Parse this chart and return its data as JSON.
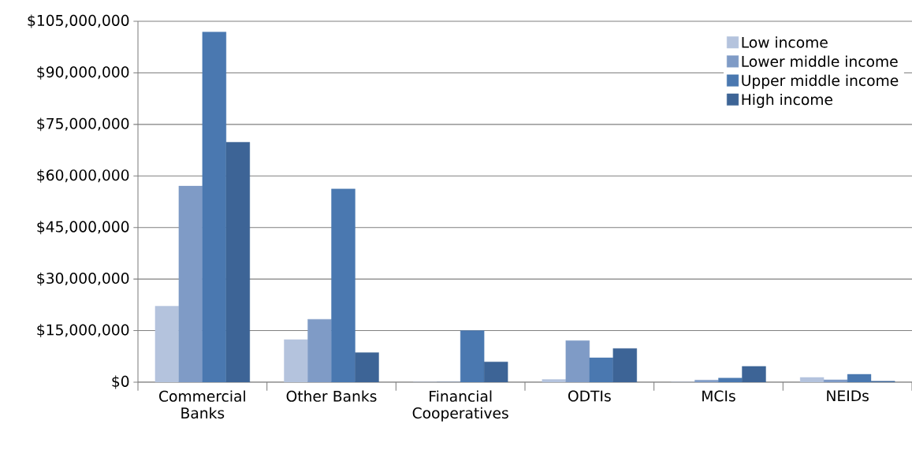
{
  "chart_data": {
    "type": "bar",
    "categories": [
      "Commercial Banks",
      "Other Banks",
      "Financial Cooperatives",
      "ODTIs",
      "MCIs",
      "NEIDs"
    ],
    "series": [
      {
        "name": "Low income",
        "color": "#b4c3dd",
        "values": [
          22100000,
          12400000,
          0,
          800000,
          0,
          1400000
        ]
      },
      {
        "name": "Lower middle income",
        "color": "#7f9bc6",
        "values": [
          57100000,
          18300000,
          0,
          12100000,
          600000,
          700000
        ]
      },
      {
        "name": "Upper middle income",
        "color": "#4a78b0",
        "values": [
          101900000,
          56200000,
          15000000,
          7100000,
          1200000,
          2300000
        ]
      },
      {
        "name": "High income",
        "color": "#3d6496",
        "values": [
          69800000,
          8600000,
          5900000,
          9800000,
          4600000,
          300000
        ]
      }
    ],
    "ylim": [
      0,
      105000000
    ],
    "yticks": [
      {
        "value": 0,
        "label": "$0"
      },
      {
        "value": 15000000,
        "label": "$15,000,000"
      },
      {
        "value": 30000000,
        "label": "$30,000,000"
      },
      {
        "value": 45000000,
        "label": "$45,000,000"
      },
      {
        "value": 60000000,
        "label": "$60,000,000"
      },
      {
        "value": 75000000,
        "label": "$75,000,000"
      },
      {
        "value": 90000000,
        "label": "$90,000,000"
      },
      {
        "value": 105000000,
        "label": "$105,000,000"
      }
    ],
    "grid": "y",
    "legend": "top right"
  }
}
